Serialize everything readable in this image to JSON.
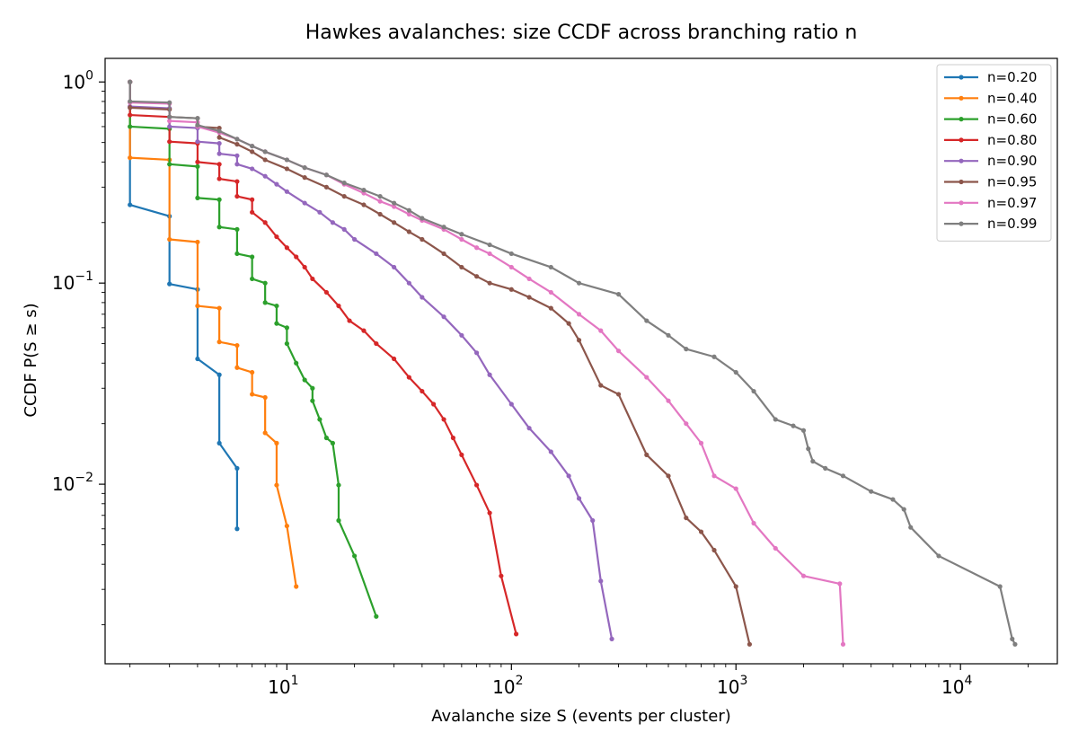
{
  "chart_data": {
    "type": "line",
    "title": "Hawkes avalanches: size CCDF across branching ratio n",
    "xlabel": "Avalanche size S (events per cluster)",
    "ylabel": "CCDF  P(S ≥ s)",
    "xscale": "log",
    "yscale": "log",
    "xlim": [
      1.55,
      27000
    ],
    "ylim": [
      0.00128,
      1.31
    ],
    "x_ticks": [
      {
        "value": 10,
        "base": "10",
        "exp": "1"
      },
      {
        "value": 100,
        "base": "10",
        "exp": "2"
      },
      {
        "value": 1000,
        "base": "10",
        "exp": "3"
      },
      {
        "value": 10000,
        "base": "10",
        "exp": "4"
      }
    ],
    "y_ticks": [
      {
        "value": 0.01,
        "base": "10",
        "exp": "−2"
      },
      {
        "value": 0.1,
        "base": "10",
        "exp": "−1"
      },
      {
        "value": 1,
        "base": "10",
        "exp": "0"
      }
    ],
    "legend_position": "top-right",
    "series": [
      {
        "name": "n=0.20",
        "color": "#1f77b4",
        "x": [
          2,
          2,
          3,
          3,
          4,
          4,
          5,
          5,
          6,
          6
        ],
        "y": [
          1.0,
          0.245,
          0.215,
          0.099,
          0.093,
          0.042,
          0.035,
          0.016,
          0.012,
          0.006
        ]
      },
      {
        "name": "n=0.40",
        "color": "#ff7f0e",
        "x": [
          2,
          2,
          3,
          3,
          4,
          4,
          5,
          5,
          6,
          6,
          7,
          7,
          8,
          8,
          9,
          9,
          10,
          11
        ],
        "y": [
          1.0,
          0.42,
          0.41,
          0.165,
          0.16,
          0.077,
          0.075,
          0.051,
          0.049,
          0.038,
          0.036,
          0.028,
          0.027,
          0.018,
          0.016,
          0.0099,
          0.0062,
          0.0031
        ]
      },
      {
        "name": "n=0.60",
        "color": "#2ca02c",
        "x": [
          2,
          2,
          3,
          3,
          4,
          4,
          5,
          5,
          6,
          6,
          7,
          7,
          8,
          8,
          9,
          9,
          10,
          10,
          11,
          12,
          13,
          13,
          14,
          15,
          16,
          17,
          17,
          20,
          25
        ],
        "y": [
          1.0,
          0.6,
          0.585,
          0.39,
          0.38,
          0.265,
          0.26,
          0.19,
          0.185,
          0.14,
          0.135,
          0.105,
          0.1,
          0.08,
          0.077,
          0.063,
          0.06,
          0.05,
          0.04,
          0.033,
          0.03,
          0.026,
          0.021,
          0.017,
          0.016,
          0.0099,
          0.0066,
          0.0044,
          0.0022
        ]
      },
      {
        "name": "n=0.80",
        "color": "#d62728",
        "x": [
          2,
          2,
          3,
          3,
          4,
          4,
          5,
          5,
          6,
          6,
          7,
          7,
          8,
          9,
          10,
          11,
          12,
          13,
          15,
          17,
          19,
          22,
          25,
          30,
          35,
          40,
          45,
          50,
          55,
          60,
          70,
          80,
          90,
          105
        ],
        "y": [
          1.0,
          0.685,
          0.67,
          0.505,
          0.495,
          0.4,
          0.39,
          0.33,
          0.32,
          0.27,
          0.26,
          0.225,
          0.2,
          0.17,
          0.15,
          0.135,
          0.12,
          0.105,
          0.09,
          0.077,
          0.065,
          0.058,
          0.05,
          0.042,
          0.034,
          0.029,
          0.025,
          0.021,
          0.017,
          0.014,
          0.0099,
          0.0072,
          0.0035,
          0.0018
        ]
      },
      {
        "name": "n=0.90",
        "color": "#9467bd",
        "x": [
          2,
          2,
          3,
          3,
          4,
          4,
          5,
          5,
          6,
          6,
          7,
          8,
          9,
          10,
          12,
          14,
          16,
          18,
          20,
          25,
          30,
          35,
          40,
          50,
          60,
          70,
          80,
          100,
          120,
          150,
          180,
          200,
          230,
          250,
          280
        ],
        "y": [
          1.0,
          0.755,
          0.74,
          0.6,
          0.59,
          0.505,
          0.495,
          0.44,
          0.43,
          0.39,
          0.37,
          0.34,
          0.31,
          0.285,
          0.25,
          0.225,
          0.2,
          0.185,
          0.165,
          0.14,
          0.12,
          0.1,
          0.085,
          0.068,
          0.055,
          0.045,
          0.035,
          0.025,
          0.019,
          0.0145,
          0.011,
          0.0085,
          0.0066,
          0.0033,
          0.0017
        ]
      },
      {
        "name": "n=0.95",
        "color": "#8c564b",
        "x": [
          2,
          2,
          3,
          3,
          4,
          4,
          5,
          5,
          6,
          7,
          8,
          10,
          12,
          15,
          18,
          22,
          26,
          30,
          35,
          40,
          50,
          60,
          70,
          80,
          100,
          120,
          150,
          180,
          200,
          250,
          300,
          400,
          500,
          600,
          700,
          800,
          1000,
          1150
        ],
        "y": [
          1.0,
          0.745,
          0.73,
          0.67,
          0.66,
          0.6,
          0.59,
          0.53,
          0.49,
          0.45,
          0.41,
          0.37,
          0.335,
          0.3,
          0.27,
          0.245,
          0.22,
          0.2,
          0.18,
          0.165,
          0.14,
          0.12,
          0.108,
          0.1,
          0.093,
          0.085,
          0.075,
          0.063,
          0.052,
          0.031,
          0.028,
          0.014,
          0.011,
          0.0068,
          0.0058,
          0.0047,
          0.0031,
          0.0016
        ]
      },
      {
        "name": "n=0.97",
        "color": "#e377c2",
        "x": [
          2,
          2,
          3,
          3,
          4,
          4,
          5,
          6,
          7,
          8,
          10,
          12,
          15,
          18,
          22,
          26,
          30,
          35,
          40,
          50,
          60,
          70,
          80,
          100,
          120,
          150,
          200,
          250,
          300,
          400,
          500,
          600,
          700,
          800,
          1000,
          1200,
          1500,
          2000,
          2900,
          3000
        ],
        "y": [
          1.0,
          0.79,
          0.78,
          0.64,
          0.63,
          0.6,
          0.56,
          0.52,
          0.48,
          0.45,
          0.41,
          0.375,
          0.345,
          0.31,
          0.28,
          0.255,
          0.24,
          0.22,
          0.205,
          0.185,
          0.165,
          0.15,
          0.14,
          0.12,
          0.105,
          0.09,
          0.07,
          0.058,
          0.046,
          0.034,
          0.026,
          0.02,
          0.016,
          0.011,
          0.0095,
          0.0064,
          0.0048,
          0.0035,
          0.0032,
          0.0016
        ]
      },
      {
        "name": "n=0.99",
        "color": "#7f7f7f",
        "x": [
          2,
          2,
          3,
          3,
          4,
          4,
          5,
          6,
          7,
          8,
          10,
          12,
          15,
          18,
          22,
          26,
          30,
          35,
          40,
          50,
          60,
          80,
          100,
          150,
          200,
          300,
          400,
          500,
          600,
          800,
          1000,
          1200,
          1500,
          1800,
          2000,
          2100,
          2200,
          2500,
          3000,
          4000,
          5000,
          5600,
          6000,
          8000,
          15000,
          17000,
          17500
        ],
        "y": [
          1.0,
          0.8,
          0.79,
          0.67,
          0.66,
          0.61,
          0.57,
          0.52,
          0.48,
          0.45,
          0.41,
          0.375,
          0.345,
          0.315,
          0.29,
          0.27,
          0.25,
          0.23,
          0.21,
          0.19,
          0.175,
          0.155,
          0.14,
          0.12,
          0.1,
          0.088,
          0.065,
          0.055,
          0.047,
          0.043,
          0.036,
          0.029,
          0.021,
          0.0195,
          0.0185,
          0.015,
          0.013,
          0.012,
          0.011,
          0.0092,
          0.0084,
          0.0075,
          0.0061,
          0.0044,
          0.0031,
          0.0017,
          0.0016
        ]
      }
    ]
  }
}
